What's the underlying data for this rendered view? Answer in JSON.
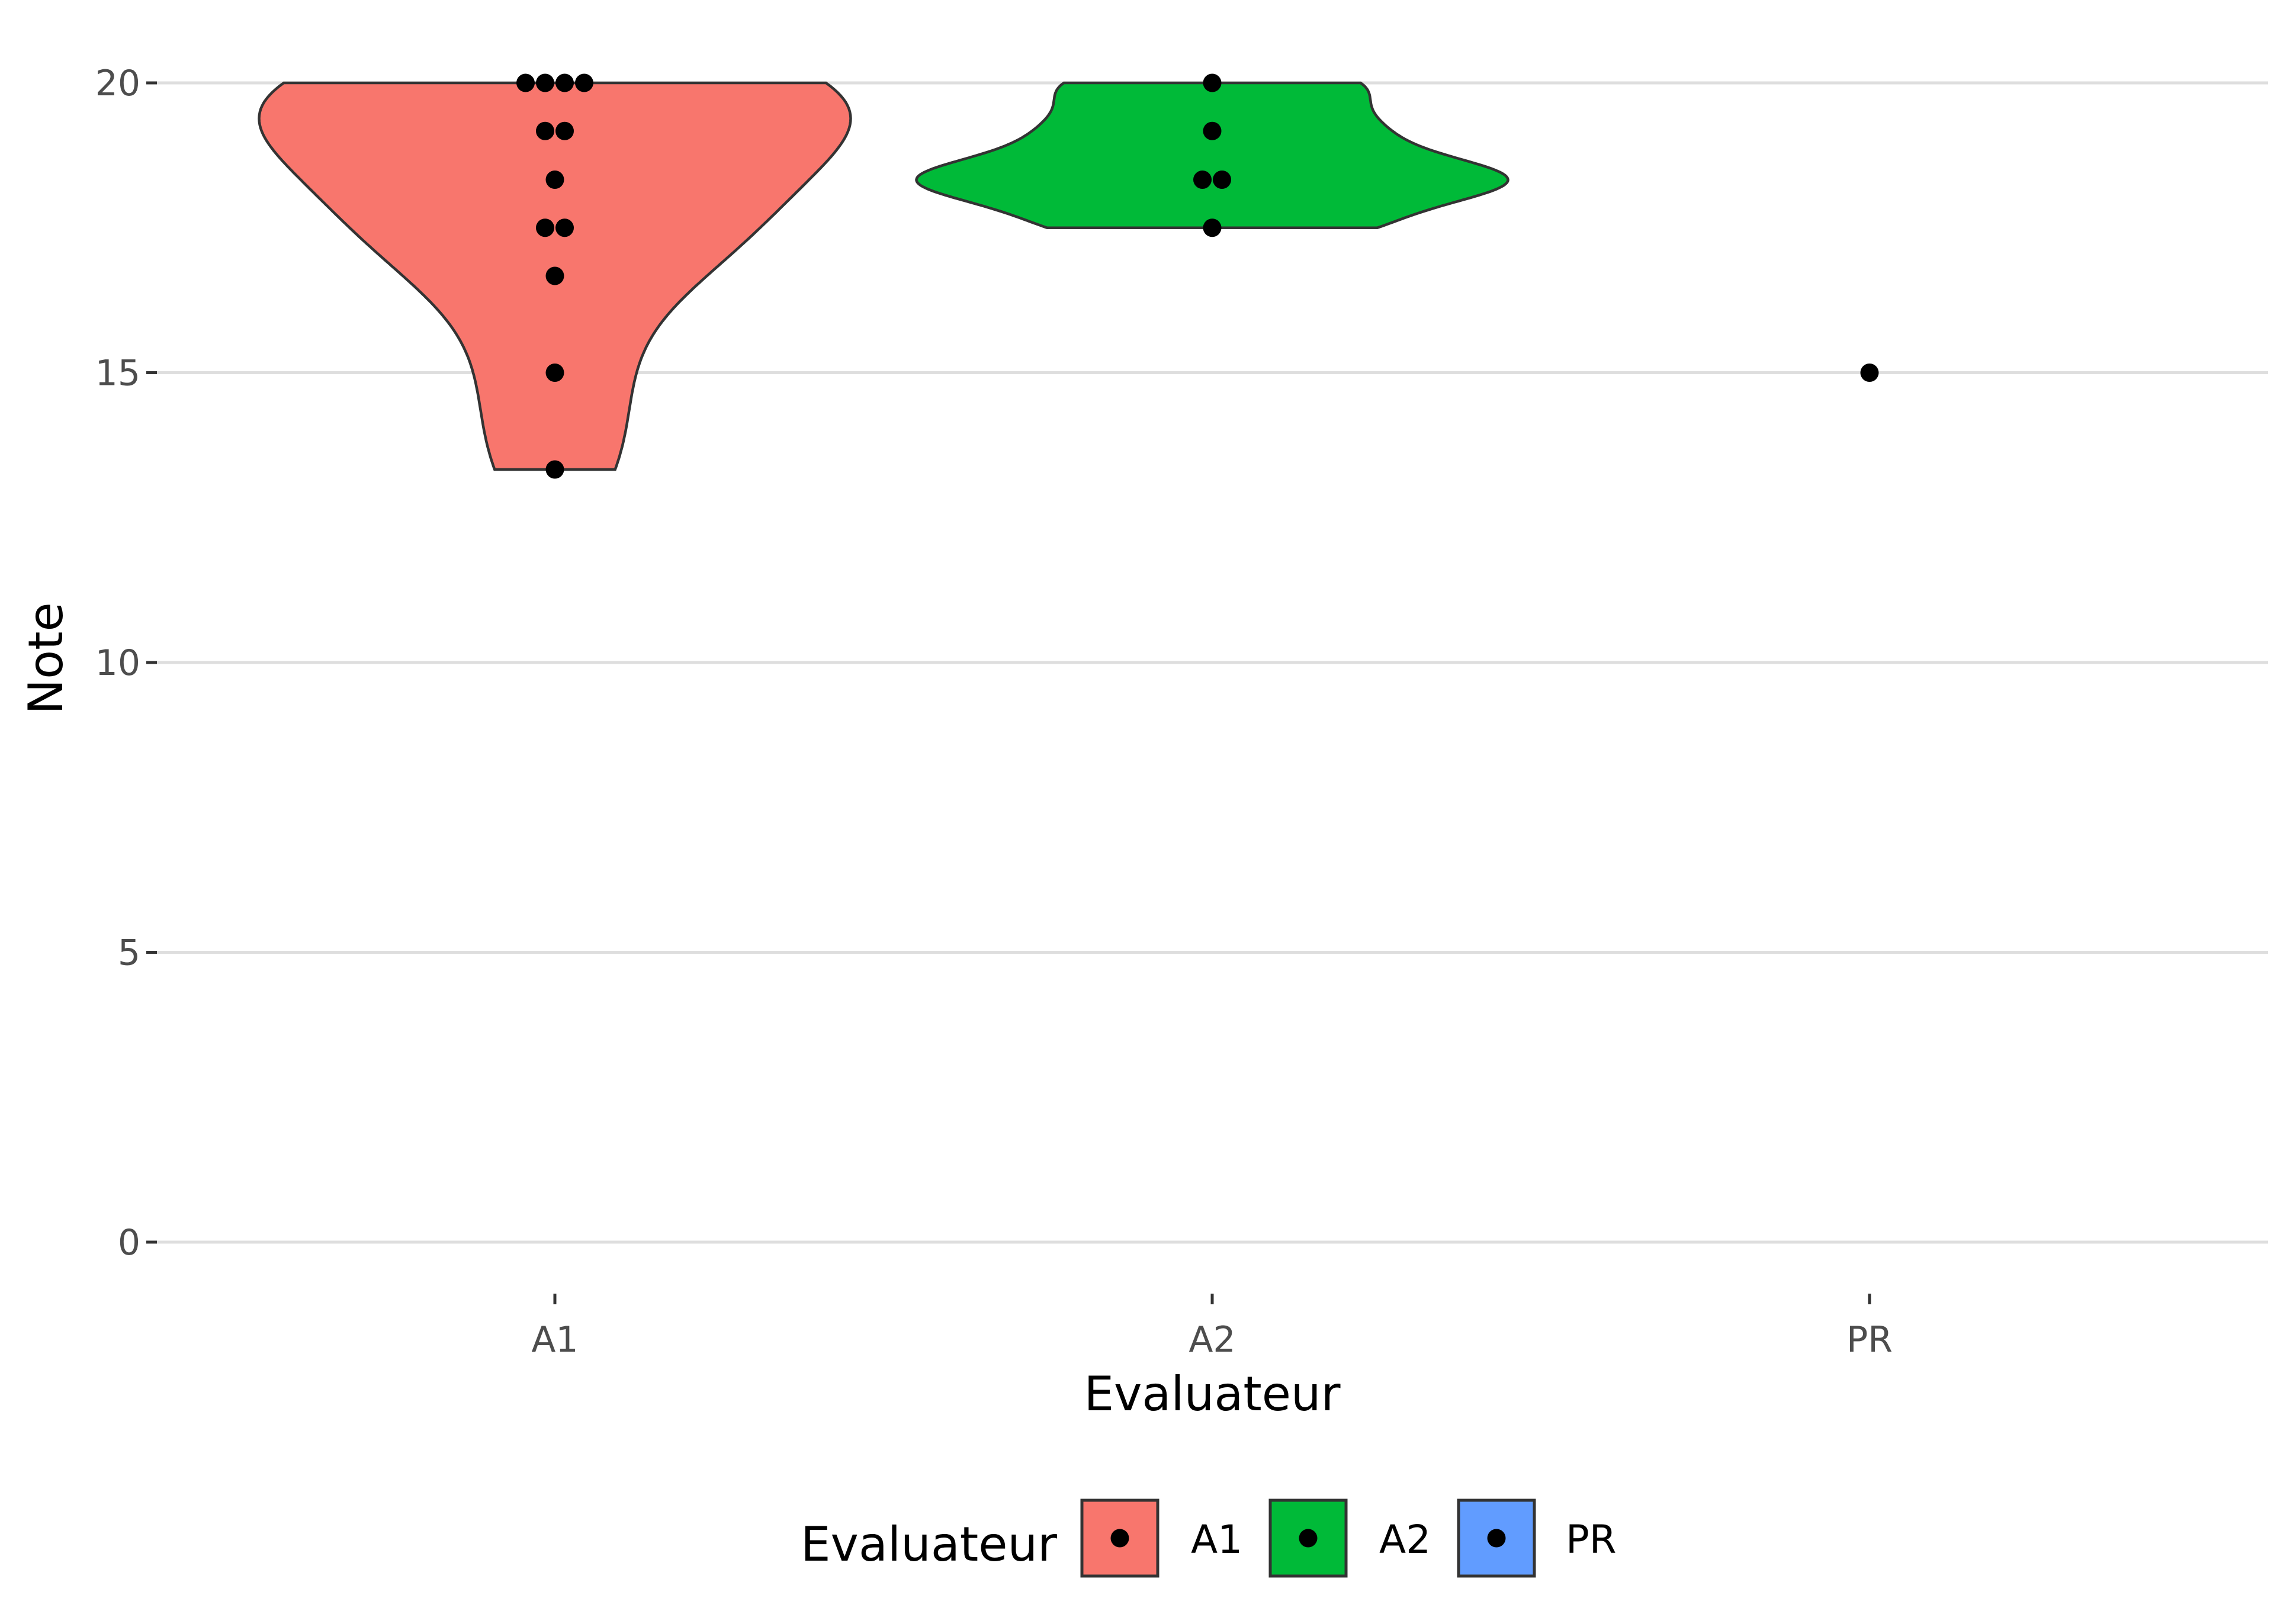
{
  "chart_data": {
    "type": "violin",
    "xlabel": "Evaluateur",
    "ylabel": "Note",
    "categories": [
      "A1",
      "A2",
      "PR"
    ],
    "yticks": [
      "0",
      "5",
      "10",
      "15",
      "20"
    ],
    "ylim": [
      0,
      20
    ],
    "grid": "horizontal major",
    "legend": {
      "title": "Evaluateur",
      "position": "bottom",
      "entries": [
        "A1",
        "A2",
        "PR"
      ]
    },
    "colors": {
      "A1": "#F8766D",
      "A2": "#00BA38",
      "PR": "#619CFF"
    },
    "series": [
      {
        "name": "A1",
        "points": [
          20,
          20,
          20,
          20,
          19.17,
          19.17,
          18.33,
          17.5,
          17.5,
          16.67,
          15,
          13.33
        ]
      },
      {
        "name": "A2",
        "points": [
          20,
          19.17,
          18.33,
          18.33,
          17.5
        ]
      },
      {
        "name": "PR",
        "points": [
          15
        ]
      }
    ]
  }
}
